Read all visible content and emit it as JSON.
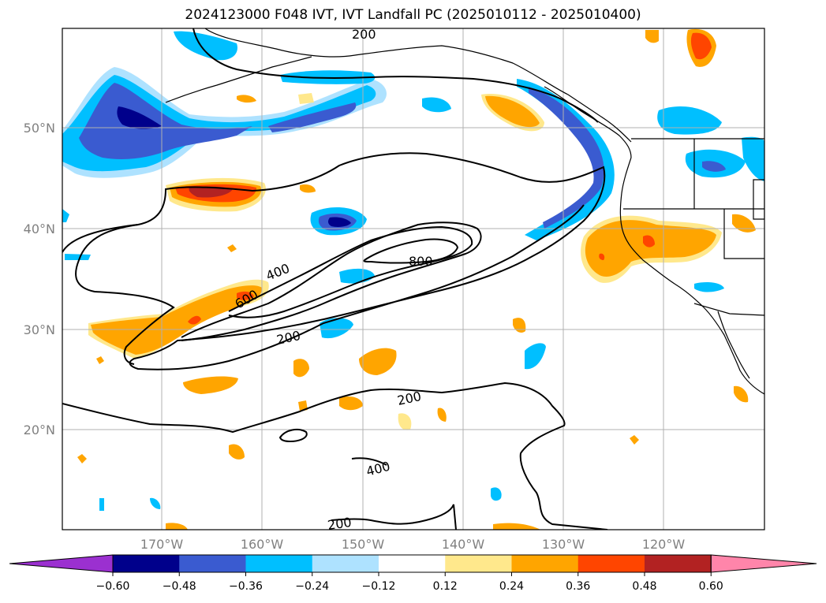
{
  "title": "2024123000 F048 IVT, IVT Landfall PC (2025010112 - 2025010400)",
  "lat_labels": [
    "50°N",
    "40°N",
    "30°N",
    "20°N"
  ],
  "lon_labels": [
    "170°W",
    "160°W",
    "150°W",
    "140°W",
    "130°W",
    "120°W"
  ],
  "contour_labels": [
    "200",
    "400",
    "600",
    "800",
    "200",
    "200",
    "400",
    "200"
  ],
  "colorbar": {
    "colors": [
      "#9b30d0",
      "#00008b",
      "#3a5bd0",
      "#00bfff",
      "#aee2ff",
      "#ffffff",
      "#ffe88c",
      "#ffa500",
      "#ff4500",
      "#b22222",
      "#ff85aa"
    ],
    "ticks": [
      "−0.60",
      "−0.48",
      "−0.36",
      "−0.24",
      "−0.12",
      "0.12",
      "0.24",
      "0.36",
      "0.48",
      "0.60"
    ]
  }
}
